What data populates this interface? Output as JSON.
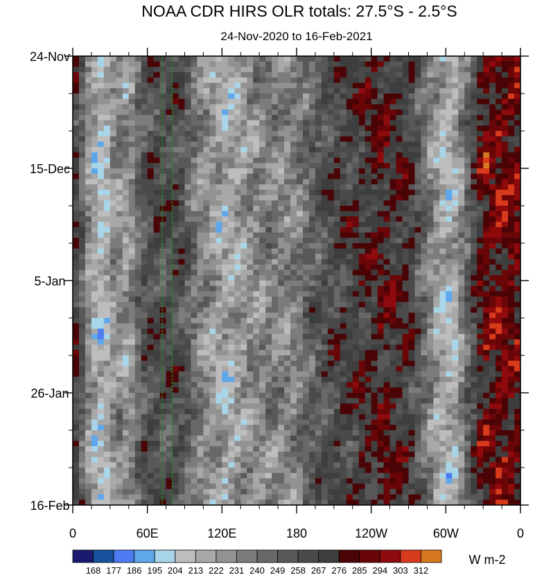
{
  "chart_data": {
    "type": "heatmap",
    "title": "NOAA CDR HIRS OLR totals: 27.5°S - 2.5°S",
    "subtitle": "24-Nov-2020 to 16-Feb-2021",
    "xlabel": "",
    "ylabel": "",
    "x_ticks": [
      "0",
      "60E",
      "120E",
      "180",
      "120W",
      "60W",
      "0"
    ],
    "x_tick_values": [
      0,
      60,
      120,
      180,
      240,
      300,
      360
    ],
    "y_ticks": [
      "24-Nov",
      "15-Dec",
      "5-Jan",
      "26-Jan",
      "16-Feb"
    ],
    "y_tick_days": [
      0,
      21,
      42,
      63,
      84
    ],
    "xlim": [
      0,
      360
    ],
    "ylim_days": [
      0,
      84
    ],
    "colorbar": {
      "levels": [
        "168",
        "177",
        "186",
        "195",
        "204",
        "213",
        "222",
        "231",
        "240",
        "249",
        "258",
        "267",
        "276",
        "285",
        "294",
        "303",
        "312"
      ],
      "colors": [
        "#1a1a70",
        "#17529c",
        "#4e7cf2",
        "#5ea7ea",
        "#a8d6e8",
        "#bdbdbd",
        "#a8a8a8",
        "#929292",
        "#7c7c7c",
        "#686868",
        "#585858",
        "#4a4a4a",
        "#3e3e3e",
        "#4a0406",
        "#6a0608",
        "#8f0a0c",
        "#d83a1c",
        "#d8781e"
      ],
      "units": "W m-2"
    },
    "reference_lines": {
      "style": "dashed",
      "color": "#1f8a1f",
      "x_values": [
        72,
        80
      ]
    },
    "field_description_by_longitude": [
      {
        "lon": 0,
        "olr": 270
      },
      {
        "lon": 5,
        "olr": 262
      },
      {
        "lon": 15,
        "olr": 218
      },
      {
        "lon": 25,
        "olr": 205
      },
      {
        "lon": 35,
        "olr": 235
      },
      {
        "lon": 45,
        "olr": 222
      },
      {
        "lon": 55,
        "olr": 255
      },
      {
        "lon": 65,
        "olr": 262
      },
      {
        "lon": 75,
        "olr": 258
      },
      {
        "lon": 85,
        "olr": 262
      },
      {
        "lon": 100,
        "olr": 236
      },
      {
        "lon": 115,
        "olr": 222
      },
      {
        "lon": 125,
        "olr": 215
      },
      {
        "lon": 140,
        "olr": 228
      },
      {
        "lon": 160,
        "olr": 236
      },
      {
        "lon": 175,
        "olr": 230
      },
      {
        "lon": 190,
        "olr": 248
      },
      {
        "lon": 210,
        "olr": 262
      },
      {
        "lon": 230,
        "olr": 270
      },
      {
        "lon": 250,
        "olr": 278
      },
      {
        "lon": 270,
        "olr": 270
      },
      {
        "lon": 290,
        "olr": 230
      },
      {
        "lon": 300,
        "olr": 212
      },
      {
        "lon": 308,
        "olr": 218
      },
      {
        "lon": 318,
        "olr": 250
      },
      {
        "lon": 330,
        "olr": 285
      },
      {
        "lon": 345,
        "olr": 288
      },
      {
        "lon": 360,
        "olr": 284
      }
    ]
  }
}
